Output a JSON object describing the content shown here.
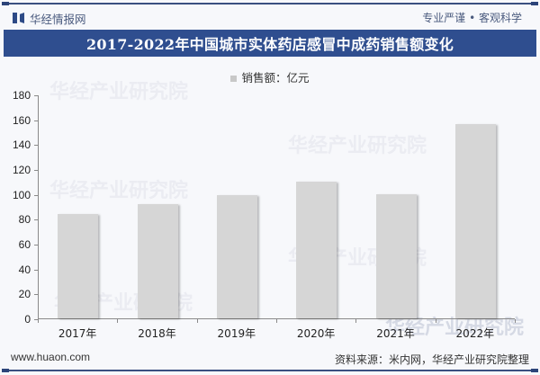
{
  "header": {
    "brand": "华经情报网",
    "tagline": "专业严谨 • 客观科学",
    "title": "2017-2022年中国城市实体药店感冒中成药销售额变化"
  },
  "legend": {
    "label": "销售额：亿元"
  },
  "watermark": "华经产业研究院",
  "footer": {
    "website": "www.huaon.com",
    "source": "资料来源：米内网，华经产业研究院整理"
  },
  "colors": {
    "banner": "#2f4e8f",
    "bar": "#d6d6d6",
    "brand_text": "#4a5a7e"
  },
  "chart_data": {
    "type": "bar",
    "title": "2017-2022年中国城市实体药店感冒中成药销售额变化",
    "xlabel": "",
    "ylabel": "",
    "categories": [
      "2017年",
      "2018年",
      "2019年",
      "2020年",
      "2021年",
      "2022年"
    ],
    "series": [
      {
        "name": "销售额：亿元",
        "values": [
          84,
          92,
          99,
          110,
          100,
          156
        ]
      }
    ],
    "ylim": [
      0,
      180
    ],
    "yticks": [
      0,
      20,
      40,
      60,
      80,
      100,
      120,
      140,
      160,
      180
    ],
    "grid": false,
    "legend_position": "top"
  }
}
